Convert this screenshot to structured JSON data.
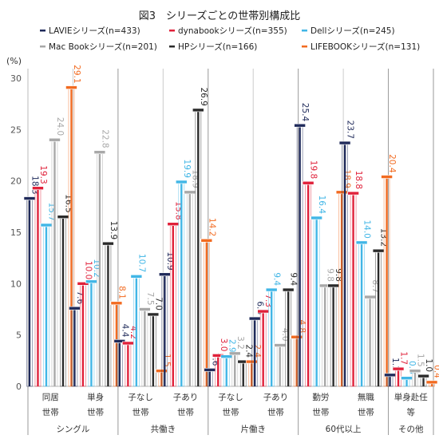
{
  "chart_data": {
    "type": "bar",
    "title": "図3　シリーズごとの世帯別構成比",
    "ylabel": "(%)",
    "ylim": [
      0,
      30
    ],
    "yticks": [
      0,
      5,
      10,
      15,
      20,
      25,
      30
    ],
    "grid": false,
    "legend_position": "top",
    "categories": [
      {
        "line1": "同居",
        "line2": "世帯"
      },
      {
        "line1": "単身",
        "line2": "世帯"
      },
      {
        "line1": "子なし",
        "line2": "世帯"
      },
      {
        "line1": "子あり",
        "line2": "世帯"
      },
      {
        "line1": "子なし",
        "line2": "世帯"
      },
      {
        "line1": "子あり",
        "line2": "世帯"
      },
      {
        "line1": "勤労",
        "line2": "世帯"
      },
      {
        "line1": "無職",
        "line2": "世帯"
      },
      {
        "line1": "単身赴任",
        "line2": "等"
      }
    ],
    "groups": [
      {
        "label": "シングル",
        "span": [
          0,
          1
        ]
      },
      {
        "label": "共働き",
        "span": [
          2,
          3
        ]
      },
      {
        "label": "片働き",
        "span": [
          4,
          5
        ]
      },
      {
        "label": "60代以上",
        "span": [
          6,
          7
        ]
      },
      {
        "label": "その他",
        "span": [
          8,
          8
        ]
      }
    ],
    "series": [
      {
        "name": "LAVIEシリーズ(n=433)",
        "color": "#1f2a5a",
        "values": [
          18.3,
          7.6,
          4.4,
          10.9,
          1.6,
          6.6,
          25.4,
          23.7,
          1.1
        ],
        "labels": [
          "18.3",
          "7.6",
          "4.4",
          "10.9",
          "1.6",
          "6.6",
          "25.4",
          "23.7",
          "1.1"
        ]
      },
      {
        "name": "dynabookシリーズ(n=355)",
        "color": "#e0213a",
        "values": [
          19.3,
          10.0,
          4.2,
          15.8,
          3.0,
          7.3,
          19.8,
          18.8,
          1.7
        ],
        "labels": [
          "19.3",
          "10.0",
          "4.2",
          "15.8",
          "3.0",
          "7.3",
          "19.8",
          "18.8",
          "1.7"
        ]
      },
      {
        "name": "Dellシリーズ(n=245)",
        "color": "#41b6e6",
        "values": [
          15.7,
          10.2,
          10.7,
          19.9,
          2.9,
          9.4,
          16.4,
          14.0,
          0.8
        ],
        "labels": [
          "15.7",
          "10.2",
          "10.7",
          "19.9",
          "2.9",
          "9.4",
          "16.4",
          "14.0",
          "0.8"
        ]
      },
      {
        "name": "Mac Bookシリーズ(n=201)",
        "color": "#a8a8a8",
        "values": [
          24.0,
          22.8,
          7.5,
          18.9,
          3.2,
          4.0,
          9.8,
          8.7,
          1.5
        ],
        "labels": [
          "24.0",
          "22.8",
          "7.5",
          "18.9",
          "3.2",
          "4.0",
          "9.8",
          "8.7",
          "1.5"
        ]
      },
      {
        "name": "HPシリーズ(n=166)",
        "color": "#2b2b2b",
        "values": [
          16.5,
          13.9,
          7.0,
          26.9,
          2.4,
          9.4,
          9.8,
          13.2,
          1.0
        ],
        "labels": [
          "16.5",
          "13.9",
          "7.0",
          "26.9",
          "2.4",
          "9.4",
          "9.8",
          "13.2",
          "1.0"
        ]
      },
      {
        "name": "LIFEBOOKシリーズ(n=131)",
        "color": "#f26b21",
        "values": [
          29.1,
          8.1,
          1.5,
          14.2,
          2.4,
          4.8,
          18.9,
          20.4,
          0.4
        ],
        "labels": [
          "29.1",
          "8.1",
          "1.5",
          "14.2",
          "2.4",
          "4.8",
          "18.9",
          "20.4",
          "0.4"
        ]
      }
    ]
  }
}
